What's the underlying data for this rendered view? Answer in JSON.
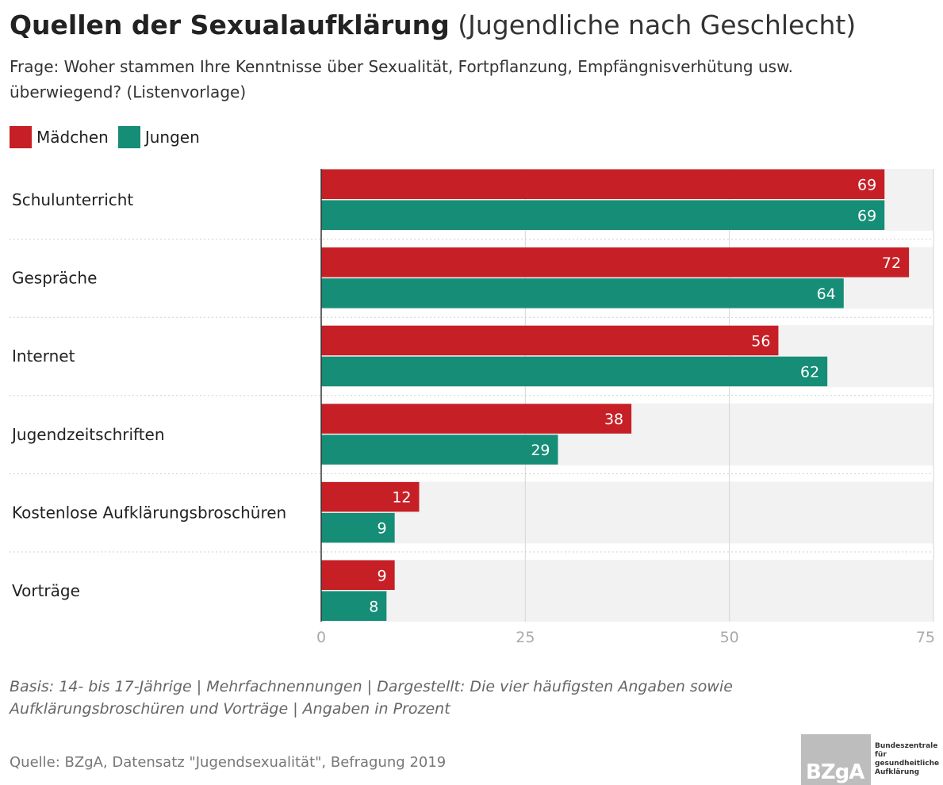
{
  "header": {
    "title_bold": "Quellen der Sexualaufklärung",
    "title_rest": "(Jugendliche nach Geschlecht)",
    "question": "Frage: Woher stammen Ihre Kenntnisse über Sexualität, Fortpflanzung, Empfängnisverhütung usw. überwiegend? (Listenvorlage)"
  },
  "colors": {
    "maedchen": "#c62026",
    "jungen": "#168d76",
    "band": "#f2f2f2"
  },
  "chart_data": {
    "type": "bar",
    "orientation": "horizontal",
    "categories": [
      "Schulunterricht",
      "Gespräche",
      "Internet",
      "Jugendzeitschriften",
      "Kostenlose Aufklärungsbroschüren",
      "Vorträge"
    ],
    "series": [
      {
        "name": "Mädchen",
        "values": [
          69,
          72,
          56,
          38,
          12,
          9
        ]
      },
      {
        "name": "Jungen",
        "values": [
          69,
          64,
          62,
          29,
          9,
          8
        ]
      }
    ],
    "xlim": [
      0,
      75
    ],
    "xticks": [
      "0",
      "25",
      "50",
      "75"
    ],
    "grid": true,
    "legend": "top-left"
  },
  "footer": {
    "note": "Basis: 14- bis 17-Jährige | Mehrfachnennungen | Dargestellt: Die vier häufigsten Angaben sowie Aufklärungsbroschüren und Vorträge | Angaben in Prozent",
    "source": "Quelle: BZgA, Datensatz \"Jugendsexualität\", Befragung 2019",
    "logo_text": "BZgA",
    "logo_org": "Bundeszentrale für gesundheitliche Aufklärung"
  }
}
